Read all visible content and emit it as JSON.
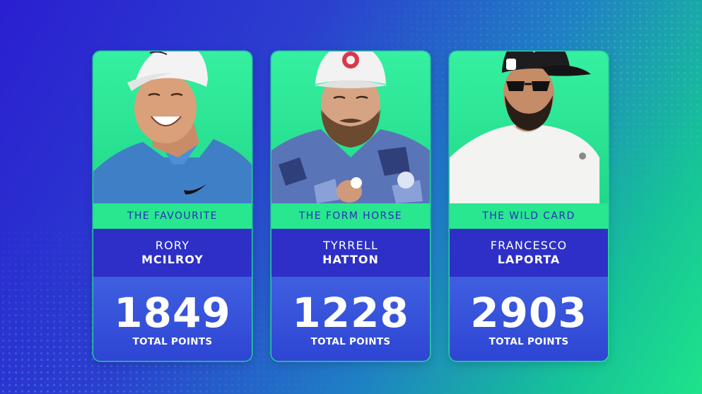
{
  "colors": {
    "accent_green": "#28e78f",
    "card_blue": "#2d2fc7",
    "tag_text": "#2b2fb8"
  },
  "players": [
    {
      "tag": "THE FAVOURITE",
      "first_name": "RORY",
      "last_name": "MCILROY",
      "points": "1849",
      "points_label": "TOTAL POINTS",
      "photo": "golfer-white-cap-blue-shirt"
    },
    {
      "tag": "THE FORM HORSE",
      "first_name": "TYRRELL",
      "last_name": "HATTON",
      "points": "1228",
      "points_label": "TOTAL POINTS",
      "photo": "golfer-bearded-white-cap-patterned-shirt"
    },
    {
      "tag": "THE WILD CARD",
      "first_name": "FRANCESCO",
      "last_name": "LAPORTA",
      "points": "2903",
      "points_label": "TOTAL POINTS",
      "photo": "golfer-black-cap-sunglasses-white-shirt"
    }
  ]
}
